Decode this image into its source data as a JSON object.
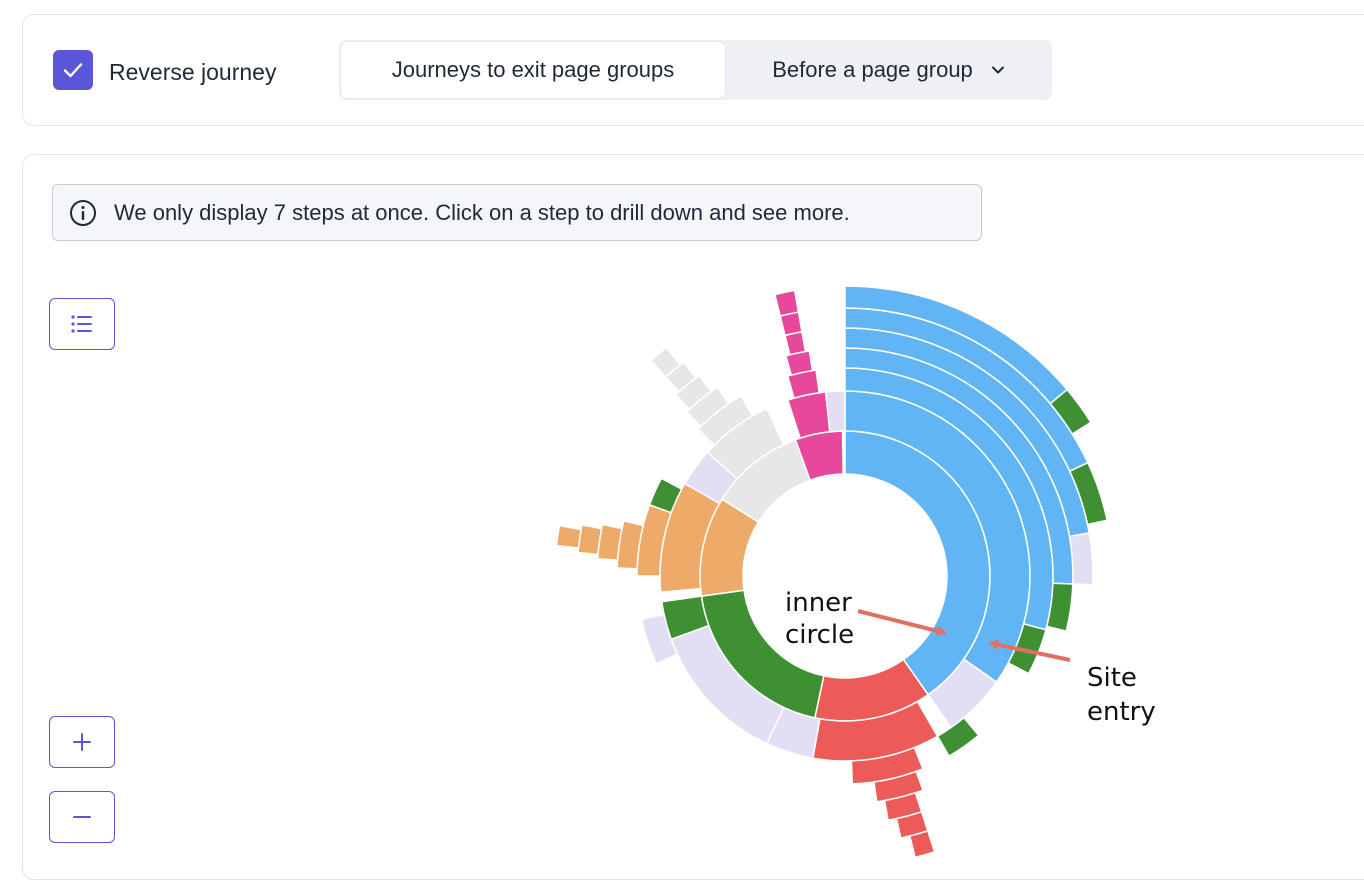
{
  "header": {
    "reverse_journey": {
      "label": "Reverse journey",
      "checked": true
    },
    "mode_tabs": [
      {
        "label": "Journeys to exit page groups",
        "selected": true
      },
      {
        "label": "Before a page group",
        "selected": false,
        "has_dropdown": true
      }
    ]
  },
  "notice": {
    "text": "We only display 7 steps at once. Click on a step to drill down and see more.",
    "icon": "info-icon"
  },
  "toolbar": {
    "list_icon": "list-icon",
    "zoom_in_label": "+",
    "zoom_out_label": "−"
  },
  "annotations": {
    "inner_circle": [
      "inner",
      "circle"
    ],
    "site_entry": [
      "Site",
      "entry"
    ],
    "arrow_color": "#e07063"
  },
  "colors": {
    "accent": "#5b55d9",
    "blue": "#62b5f5",
    "red": "#ec5b57",
    "green": "#3f9032",
    "orange": "#eeaa68",
    "gray": "#e7e7e7",
    "pink": "#e7489b",
    "lavender": "#e2def4"
  }
}
